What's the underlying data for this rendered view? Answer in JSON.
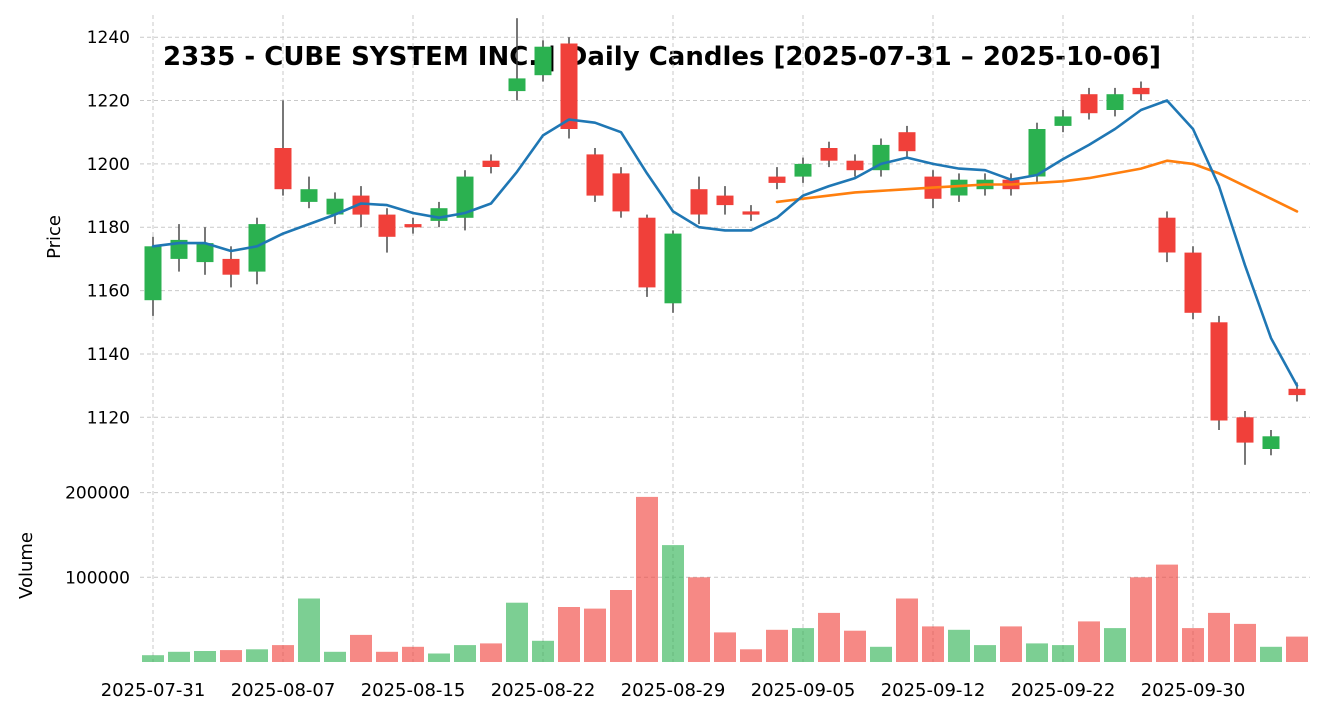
{
  "title": "2335 - CUBE SYSTEM INC. | Daily Candles [2025-07-31 – 2025-10-06]",
  "price_axis_label": "Price",
  "volume_axis_label": "Volume",
  "colors": {
    "up": "#2bb150",
    "down": "#f0403a",
    "sma_short": "#1f77b4",
    "sma_long": "#ff7f0e",
    "wick": "#3d3d3d",
    "grid": "#c9c9c9",
    "text": "#000000",
    "background": "#ffffff"
  },
  "chart_data": {
    "type": "candlestick+volume",
    "title": "2335 - CUBE SYSTEM INC. | Daily Candles [2025-07-31 – 2025-10-06]",
    "ylabel_price": "Price",
    "ylabel_volume": "Volume",
    "grid": "dashed",
    "legend": "none",
    "price_ylim": [
      1104,
      1247
    ],
    "volume_ylim": [
      0,
      222000
    ],
    "price_ticks": [
      1240,
      1220,
      1200,
      1180,
      1160,
      1140,
      1120
    ],
    "volume_ticks": [
      200000,
      100000
    ],
    "x_tick_indices": [
      0,
      5,
      10,
      15,
      20,
      25,
      30,
      35,
      40
    ],
    "x_tick_labels": [
      "2025-07-31",
      "2025-08-07",
      "2025-08-15",
      "2025-08-22",
      "2025-08-29",
      "2025-09-05",
      "2025-09-12",
      "2025-09-22",
      "2025-09-30"
    ],
    "candles": [
      {
        "date": "2025-07-31",
        "open": 1157,
        "high": 1177,
        "low": 1152,
        "close": 1174,
        "volume": 8000
      },
      {
        "date": "2025-08-01",
        "open": 1170,
        "high": 1181,
        "low": 1166,
        "close": 1176,
        "volume": 12000
      },
      {
        "date": "2025-08-04",
        "open": 1169,
        "high": 1180,
        "low": 1165,
        "close": 1175,
        "volume": 13000
      },
      {
        "date": "2025-08-05",
        "open": 1170,
        "high": 1174,
        "low": 1161,
        "close": 1165,
        "volume": 14000
      },
      {
        "date": "2025-08-06",
        "open": 1166,
        "high": 1183,
        "low": 1162,
        "close": 1181,
        "volume": 15000
      },
      {
        "date": "2025-08-07",
        "open": 1205,
        "high": 1220,
        "low": 1190,
        "close": 1192,
        "volume": 20000
      },
      {
        "date": "2025-08-08",
        "open": 1188,
        "high": 1196,
        "low": 1186,
        "close": 1192,
        "volume": 75000
      },
      {
        "date": "2025-08-12",
        "open": 1184,
        "high": 1191,
        "low": 1181,
        "close": 1189,
        "volume": 12000
      },
      {
        "date": "2025-08-13",
        "open": 1190,
        "high": 1193,
        "low": 1180,
        "close": 1184,
        "volume": 32000
      },
      {
        "date": "2025-08-14",
        "open": 1184,
        "high": 1186,
        "low": 1172,
        "close": 1177,
        "volume": 12000
      },
      {
        "date": "2025-08-15",
        "open": 1181,
        "high": 1183,
        "low": 1178,
        "close": 1180,
        "volume": 18000
      },
      {
        "date": "2025-08-18",
        "open": 1182,
        "high": 1188,
        "low": 1180,
        "close": 1186,
        "volume": 10000
      },
      {
        "date": "2025-08-19",
        "open": 1183,
        "high": 1198,
        "low": 1179,
        "close": 1196,
        "volume": 20000
      },
      {
        "date": "2025-08-20",
        "open": 1201,
        "high": 1203,
        "low": 1197,
        "close": 1199,
        "volume": 22000
      },
      {
        "date": "2025-08-21",
        "open": 1223,
        "high": 1246,
        "low": 1220,
        "close": 1227,
        "volume": 70000
      },
      {
        "date": "2025-08-22",
        "open": 1228,
        "high": 1239,
        "low": 1226,
        "close": 1237,
        "volume": 25000
      },
      {
        "date": "2025-08-25",
        "open": 1238,
        "high": 1240,
        "low": 1208,
        "close": 1211,
        "volume": 65000
      },
      {
        "date": "2025-08-26",
        "open": 1203,
        "high": 1205,
        "low": 1188,
        "close": 1190,
        "volume": 63000
      },
      {
        "date": "2025-08-27",
        "open": 1197,
        "high": 1199,
        "low": 1183,
        "close": 1185,
        "volume": 85000
      },
      {
        "date": "2025-08-28",
        "open": 1183,
        "high": 1184,
        "low": 1158,
        "close": 1161,
        "volume": 195000
      },
      {
        "date": "2025-08-29",
        "open": 1156,
        "high": 1179,
        "low": 1153,
        "close": 1178,
        "volume": 138000
      },
      {
        "date": "2025-09-01",
        "open": 1192,
        "high": 1196,
        "low": 1181,
        "close": 1184,
        "volume": 100000
      },
      {
        "date": "2025-09-02",
        "open": 1190,
        "high": 1193,
        "low": 1184,
        "close": 1187,
        "volume": 35000
      },
      {
        "date": "2025-09-03",
        "open": 1185,
        "high": 1187,
        "low": 1182,
        "close": 1184,
        "volume": 15000
      },
      {
        "date": "2025-09-04",
        "open": 1196,
        "high": 1199,
        "low": 1192,
        "close": 1194,
        "volume": 38000
      },
      {
        "date": "2025-09-05",
        "open": 1196,
        "high": 1202,
        "low": 1194,
        "close": 1200,
        "volume": 40000
      },
      {
        "date": "2025-09-08",
        "open": 1205,
        "high": 1207,
        "low": 1199,
        "close": 1201,
        "volume": 58000
      },
      {
        "date": "2025-09-09",
        "open": 1201,
        "high": 1203,
        "low": 1196,
        "close": 1198,
        "volume": 37000
      },
      {
        "date": "2025-09-10",
        "open": 1198,
        "high": 1208,
        "low": 1196,
        "close": 1206,
        "volume": 18000
      },
      {
        "date": "2025-09-11",
        "open": 1210,
        "high": 1212,
        "low": 1202,
        "close": 1204,
        "volume": 75000
      },
      {
        "date": "2025-09-12",
        "open": 1196,
        "high": 1198,
        "low": 1186,
        "close": 1189,
        "volume": 42000
      },
      {
        "date": "2025-09-16",
        "open": 1190,
        "high": 1197,
        "low": 1188,
        "close": 1195,
        "volume": 38000
      },
      {
        "date": "2025-09-17",
        "open": 1192,
        "high": 1197,
        "low": 1190,
        "close": 1195,
        "volume": 20000
      },
      {
        "date": "2025-09-18",
        "open": 1195,
        "high": 1197,
        "low": 1190,
        "close": 1192,
        "volume": 42000
      },
      {
        "date": "2025-09-19",
        "open": 1196,
        "high": 1213,
        "low": 1194,
        "close": 1211,
        "volume": 22000
      },
      {
        "date": "2025-09-22",
        "open": 1212,
        "high": 1217,
        "low": 1210,
        "close": 1215,
        "volume": 20000
      },
      {
        "date": "2025-09-24",
        "open": 1222,
        "high": 1224,
        "low": 1214,
        "close": 1216,
        "volume": 48000
      },
      {
        "date": "2025-09-25",
        "open": 1217,
        "high": 1224,
        "low": 1215,
        "close": 1222,
        "volume": 40000
      },
      {
        "date": "2025-09-26",
        "open": 1224,
        "high": 1226,
        "low": 1220,
        "close": 1222,
        "volume": 100000
      },
      {
        "date": "2025-09-29",
        "open": 1183,
        "high": 1185,
        "low": 1169,
        "close": 1172,
        "volume": 115000
      },
      {
        "date": "2025-09-30",
        "open": 1172,
        "high": 1174,
        "low": 1151,
        "close": 1153,
        "volume": 40000
      },
      {
        "date": "2025-10-01",
        "open": 1150,
        "high": 1152,
        "low": 1116,
        "close": 1119,
        "volume": 58000
      },
      {
        "date": "2025-10-02",
        "open": 1120,
        "high": 1122,
        "low": 1105,
        "close": 1112,
        "volume": 45000
      },
      {
        "date": "2025-10-03",
        "open": 1110,
        "high": 1116,
        "low": 1108,
        "close": 1114,
        "volume": 18000
      },
      {
        "date": "2025-10-06",
        "open": 1129,
        "high": 1131,
        "low": 1125,
        "close": 1127,
        "volume": 30000
      }
    ],
    "sma_short": [
      1174,
      1175,
      1175,
      1172.5,
      1174,
      1178,
      1181,
      1184,
      1187.5,
      1187,
      1184.5,
      1183,
      1184.5,
      1187.5,
      1197.5,
      1209,
      1214,
      1213,
      1210,
      1197,
      1185,
      1180,
      1179,
      1179,
      1183,
      1190,
      1193,
      1195.5,
      1200,
      1202,
      1200,
      1198.5,
      1198,
      1195,
      1196.5,
      1201.5,
      1206,
      1211,
      1217,
      1220,
      1211,
      1193,
      1168,
      1145,
      1130
    ],
    "sma_long": [
      null,
      null,
      null,
      null,
      null,
      null,
      null,
      null,
      null,
      null,
      null,
      null,
      null,
      null,
      null,
      null,
      null,
      null,
      null,
      null,
      null,
      null,
      null,
      null,
      1188,
      1189,
      1190,
      1191,
      1191.5,
      1192,
      1192.5,
      1193,
      1193.5,
      1193.5,
      1194,
      1194.5,
      1195.5,
      1197,
      1198.5,
      1201,
      1200,
      1197,
      1193,
      1189,
      1185
    ]
  }
}
